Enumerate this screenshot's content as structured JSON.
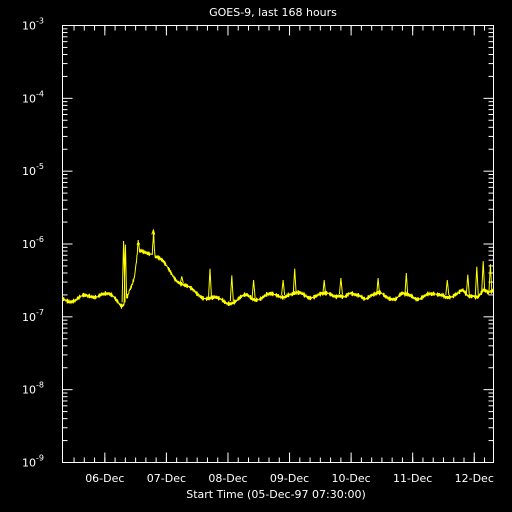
{
  "chart_data": {
    "type": "line",
    "title": "GOES-9, last 168 hours",
    "xlabel": "Start Time (05-Dec-97 07:30:00)",
    "ylabel": "",
    "y_scale": "log",
    "ylim": [
      1e-09,
      0.001
    ],
    "y_ticks": [
      {
        "base": "10",
        "exp": "-9"
      },
      {
        "base": "10",
        "exp": "-8"
      },
      {
        "base": "10",
        "exp": "-7"
      },
      {
        "base": "10",
        "exp": "-6"
      },
      {
        "base": "10",
        "exp": "-5"
      },
      {
        "base": "10",
        "exp": "-4"
      },
      {
        "base": "10",
        "exp": "-3"
      }
    ],
    "x_range_hours": [
      0,
      168
    ],
    "x_ticks": [
      {
        "label": "06-Dec",
        "hour": 16.5
      },
      {
        "label": "07-Dec",
        "hour": 40.5
      },
      {
        "label": "08-Dec",
        "hour": 64.5
      },
      {
        "label": "09-Dec",
        "hour": 88.5
      },
      {
        "label": "10-Dec",
        "hour": 112.5
      },
      {
        "label": "11-Dec",
        "hour": 136.5
      },
      {
        "label": "12-Dec",
        "hour": 160.5
      }
    ],
    "grid": false,
    "line_color": "#ffff00",
    "series": [
      {
        "x": [
          0,
          5,
          10,
          15,
          20,
          22,
          23,
          24,
          24.5,
          25,
          25.5,
          26,
          27,
          28,
          29,
          29.5,
          30,
          31,
          33,
          35,
          35.5,
          36,
          37,
          38,
          40,
          42,
          44,
          46,
          48,
          50,
          52,
          54,
          56,
          58,
          60,
          62,
          64,
          66,
          68,
          70,
          72,
          74,
          76,
          78,
          80,
          82,
          84,
          86,
          88,
          90,
          92,
          94,
          96,
          98,
          100,
          102,
          104,
          106,
          108,
          110,
          112,
          114,
          116,
          118,
          120,
          122,
          124,
          126,
          128,
          130,
          132,
          134,
          136,
          138,
          140,
          142,
          144,
          146,
          148,
          150,
          152,
          154,
          156,
          158,
          160,
          162,
          164,
          166,
          168
        ],
        "y": [
          1.8e-07,
          1.7e-07,
          1.9e-07,
          2.1e-07,
          1.8e-07,
          1.6e-07,
          1.5e-07,
          1.6e-07,
          1.1e-06,
          2e-07,
          2e-07,
          2.3e-07,
          2.6e-07,
          3.2e-07,
          6e-07,
          1.05e-06,
          7.5e-07,
          7.8e-07,
          8e-07,
          7.8e-07,
          1.55e-06,
          7e-07,
          6.5e-07,
          6e-07,
          5e-07,
          4.2e-07,
          3.5e-07,
          3e-07,
          2.6e-07,
          2.3e-07,
          2.1e-07,
          2e-07,
          1.9e-07,
          1.8e-07,
          1.7e-07,
          1.65e-07,
          1.6e-07,
          1.65e-07,
          1.7e-07,
          1.8e-07,
          1.9e-07,
          1.8e-07,
          1.85e-07,
          1.9e-07,
          1.95e-07,
          1.9e-07,
          1.95e-07,
          2e-07,
          2.1e-07,
          2e-07,
          2e-07,
          2e-07,
          1.95e-07,
          2e-07,
          2e-07,
          1.95e-07,
          2e-07,
          2e-07,
          2.1e-07,
          1.9e-07,
          1.95e-07,
          1.9e-07,
          2e-07,
          1.9e-07,
          2e-07,
          1.95e-07,
          2e-07,
          1.9e-07,
          1.9e-07,
          1.85e-07,
          2e-07,
          1.9e-07,
          1.9e-07,
          1.85e-07,
          1.95e-07,
          2e-07,
          1.9e-07,
          1.95e-07,
          2.1e-07,
          2e-07,
          1.9e-07,
          1.95e-07,
          2.2e-07,
          2e-07,
          2.1e-07,
          1.9e-07,
          2.2e-07,
          2e-07,
          2.3e-07
        ]
      }
    ],
    "spikes": [
      {
        "x": 23.8,
        "y": 1.1e-06
      },
      {
        "x": 29.6,
        "y": 1.05e-06
      },
      {
        "x": 35.4,
        "y": 1.55e-06
      },
      {
        "x": 46.5,
        "y": 3.6e-07
      },
      {
        "x": 57.5,
        "y": 4.6e-07
      },
      {
        "x": 66.0,
        "y": 3.7e-07
      },
      {
        "x": 74.5,
        "y": 3.2e-07
      },
      {
        "x": 86.0,
        "y": 3.2e-07
      },
      {
        "x": 90.5,
        "y": 4.6e-07
      },
      {
        "x": 102.0,
        "y": 3.2e-07
      },
      {
        "x": 108.5,
        "y": 3.4e-07
      },
      {
        "x": 123.0,
        "y": 3.4e-07
      },
      {
        "x": 134.0,
        "y": 4e-07
      },
      {
        "x": 150.0,
        "y": 3.2e-07
      },
      {
        "x": 158.0,
        "y": 3.8e-07
      },
      {
        "x": 161.5,
        "y": 4.9e-07
      },
      {
        "x": 164.0,
        "y": 5.8e-07
      },
      {
        "x": 166.8,
        "y": 5.3e-07
      }
    ]
  }
}
